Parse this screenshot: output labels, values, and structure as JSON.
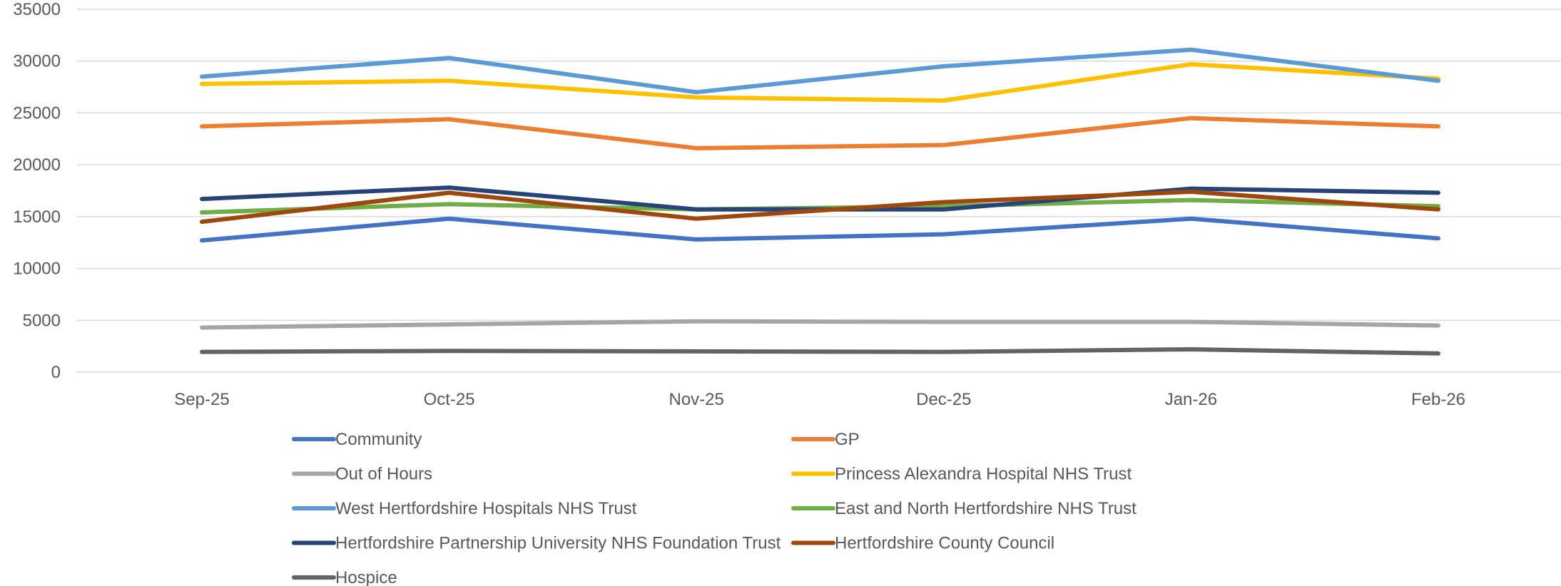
{
  "chart_data": {
    "type": "line",
    "title": "",
    "xlabel": "",
    "ylabel": "",
    "categories": [
      "Sep-25",
      "Oct-25",
      "Nov-25",
      "Dec-25",
      "Jan-26",
      "Feb-26"
    ],
    "ylim": [
      0,
      35000
    ],
    "yticks": [
      0,
      5000,
      10000,
      15000,
      20000,
      25000,
      30000,
      35000
    ],
    "grid": "horizontal",
    "legend_position": "bottom",
    "series": [
      {
        "name": "Community",
        "color": "#4472C4",
        "values": [
          12700,
          14800,
          12800,
          13300,
          14800,
          12900
        ]
      },
      {
        "name": "GP",
        "color": "#ED7D31",
        "values": [
          23700,
          24400,
          21600,
          21900,
          24500,
          23700
        ]
      },
      {
        "name": "Out of Hours",
        "color": "#A5A5A5",
        "values": [
          4300,
          4600,
          4900,
          4850,
          4850,
          4500
        ]
      },
      {
        "name": "Princess Alexandra Hospital NHS Trust",
        "color": "#FFC000",
        "values": [
          27800,
          28100,
          26500,
          26200,
          29700,
          28300
        ]
      },
      {
        "name": "West Hertfordshire Hospitals NHS Trust",
        "color": "#5B9BD5",
        "values": [
          28500,
          30300,
          27000,
          29500,
          31100,
          28100
        ]
      },
      {
        "name": "East and North Hertfordshire NHS Trust",
        "color": "#70AD47",
        "values": [
          15400,
          16200,
          15700,
          16000,
          16600,
          16000
        ]
      },
      {
        "name": "Hertfordshire Partnership University NHS Foundation Trust",
        "color": "#264478",
        "values": [
          16700,
          17800,
          15700,
          15700,
          17700,
          17300
        ]
      },
      {
        "name": "Hertfordshire County Council",
        "color": "#9E480E",
        "values": [
          14500,
          17300,
          14800,
          16400,
          17400,
          15700
        ]
      },
      {
        "name": "Hospice",
        "color": "#636363",
        "values": [
          1950,
          2050,
          2000,
          1950,
          2200,
          1800
        ]
      }
    ]
  }
}
